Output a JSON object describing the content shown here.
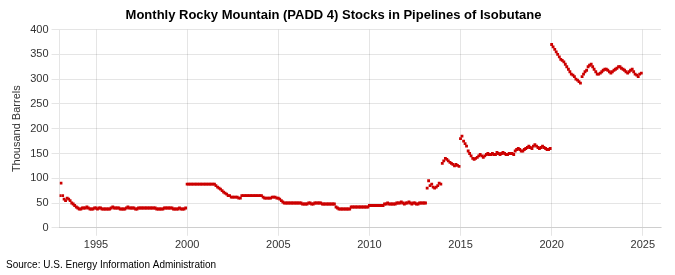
{
  "chart_data": {
    "type": "scatter",
    "title": "Monthly Rocky Mountain (PADD 4) Stocks in Pipelines of Isobutane",
    "ylabel": "Thousand Barrels",
    "annotations": [
      "Source: U.S. Energy Information Administration"
    ],
    "color": "#cc0000",
    "marker": "square",
    "grid": true,
    "xlim": [
      1993.0,
      2026.0
    ],
    "xticks": [
      1995,
      2000,
      2005,
      2010,
      2015,
      2020,
      2025
    ],
    "ylim": [
      0,
      400
    ],
    "yticks": [
      0,
      50,
      100,
      150,
      200,
      250,
      300,
      350,
      400
    ],
    "x": [
      1993.0,
      1993.08,
      1993.17,
      1993.25,
      1993.33,
      1993.42,
      1993.5,
      1993.58,
      1993.67,
      1993.75,
      1993.83,
      1993.92,
      1994.0,
      1994.08,
      1994.17,
      1994.25,
      1994.33,
      1994.42,
      1994.5,
      1994.58,
      1994.67,
      1994.75,
      1994.83,
      1994.92,
      1995.0,
      1995.08,
      1995.17,
      1995.25,
      1995.33,
      1995.42,
      1995.5,
      1995.58,
      1995.67,
      1995.75,
      1995.83,
      1995.92,
      1996.0,
      1996.08,
      1996.17,
      1996.25,
      1996.33,
      1996.42,
      1996.5,
      1996.58,
      1996.67,
      1996.75,
      1996.83,
      1996.92,
      1997.0,
      1997.08,
      1997.17,
      1997.25,
      1997.33,
      1997.42,
      1997.5,
      1997.58,
      1997.67,
      1997.75,
      1997.83,
      1997.92,
      1998.0,
      1998.08,
      1998.17,
      1998.25,
      1998.33,
      1998.42,
      1998.5,
      1998.58,
      1998.67,
      1998.75,
      1998.83,
      1998.92,
      1999.0,
      1999.08,
      1999.17,
      1999.25,
      1999.33,
      1999.42,
      1999.5,
      1999.58,
      1999.67,
      1999.75,
      1999.83,
      1999.92,
      2000.0,
      2000.08,
      2000.17,
      2000.25,
      2000.33,
      2000.42,
      2000.5,
      2000.58,
      2000.67,
      2000.75,
      2000.83,
      2000.92,
      2001.0,
      2001.08,
      2001.17,
      2001.25,
      2001.33,
      2001.42,
      2001.5,
      2001.58,
      2001.67,
      2001.75,
      2001.83,
      2001.92,
      2002.0,
      2002.08,
      2002.17,
      2002.25,
      2002.33,
      2002.42,
      2002.5,
      2002.58,
      2002.67,
      2002.75,
      2002.83,
      2002.92,
      2003.0,
      2003.08,
      2003.17,
      2003.25,
      2003.33,
      2003.42,
      2003.5,
      2003.58,
      2003.67,
      2003.75,
      2003.83,
      2003.92,
      2004.0,
      2004.08,
      2004.17,
      2004.25,
      2004.33,
      2004.42,
      2004.5,
      2004.58,
      2004.67,
      2004.75,
      2004.83,
      2004.92,
      2005.0,
      2005.08,
      2005.17,
      2005.25,
      2005.33,
      2005.42,
      2005.5,
      2005.58,
      2005.67,
      2005.75,
      2005.83,
      2005.92,
      2006.0,
      2006.08,
      2006.17,
      2006.25,
      2006.33,
      2006.42,
      2006.5,
      2006.58,
      2006.67,
      2006.75,
      2006.83,
      2006.92,
      2007.0,
      2007.08,
      2007.17,
      2007.25,
      2007.33,
      2007.42,
      2007.5,
      2007.58,
      2007.67,
      2007.75,
      2007.83,
      2007.92,
      2008.0,
      2008.08,
      2008.17,
      2008.25,
      2008.33,
      2008.42,
      2008.5,
      2008.58,
      2008.67,
      2008.75,
      2008.83,
      2008.92,
      2009.0,
      2009.08,
      2009.17,
      2009.25,
      2009.33,
      2009.42,
      2009.5,
      2009.58,
      2009.67,
      2009.75,
      2009.83,
      2009.92,
      2010.0,
      2010.08,
      2010.17,
      2010.25,
      2010.33,
      2010.42,
      2010.5,
      2010.58,
      2010.67,
      2010.75,
      2010.83,
      2010.92,
      2011.0,
      2011.08,
      2011.17,
      2011.25,
      2011.33,
      2011.42,
      2011.5,
      2011.58,
      2011.67,
      2011.75,
      2011.83,
      2011.92,
      2012.0,
      2012.08,
      2012.17,
      2012.25,
      2012.33,
      2012.42,
      2012.5,
      2012.58,
      2012.67,
      2012.75,
      2012.83,
      2012.92,
      2013.0,
      2013.08,
      2013.17,
      2013.25,
      2013.33,
      2013.42,
      2013.5,
      2013.58,
      2013.67,
      2013.75,
      2013.83,
      2013.92,
      2014.0,
      2014.08,
      2014.17,
      2014.25,
      2014.33,
      2014.42,
      2014.5,
      2014.58,
      2014.67,
      2014.75,
      2014.83,
      2014.92,
      2015.0,
      2015.08,
      2015.17,
      2015.25,
      2015.33,
      2015.42,
      2015.5,
      2015.58,
      2015.67,
      2015.75,
      2015.83,
      2015.92,
      2016.0,
      2016.08,
      2016.17,
      2016.25,
      2016.33,
      2016.42,
      2016.5,
      2016.58,
      2016.67,
      2016.75,
      2016.83,
      2016.92,
      2017.0,
      2017.08,
      2017.17,
      2017.25,
      2017.33,
      2017.42,
      2017.5,
      2017.58,
      2017.67,
      2017.75,
      2017.83,
      2017.92,
      2018.0,
      2018.08,
      2018.17,
      2018.25,
      2018.33,
      2018.42,
      2018.5,
      2018.58,
      2018.67,
      2018.75,
      2018.83,
      2018.92,
      2019.0,
      2019.08,
      2019.17,
      2019.25,
      2019.33,
      2019.42,
      2019.5,
      2019.58,
      2019.67,
      2019.75,
      2019.83,
      2019.92,
      2020.0,
      2020.08,
      2020.17,
      2020.25,
      2020.33,
      2020.42,
      2020.5,
      2020.58,
      2020.67,
      2020.75,
      2020.83,
      2020.92,
      2021.0,
      2021.08,
      2021.17,
      2021.25,
      2021.33,
      2021.42,
      2021.5,
      2021.58,
      2021.67,
      2021.75,
      2021.83,
      2021.92,
      2022.0,
      2022.08,
      2022.17,
      2022.25,
      2022.33,
      2022.42,
      2022.5,
      2022.58,
      2022.67,
      2022.75,
      2022.83,
      2022.92,
      2023.0,
      2023.08,
      2023.17,
      2023.25,
      2023.33,
      2023.42,
      2023.5,
      2023.58,
      2023.67,
      2023.75,
      2023.83,
      2023.92,
      2024.0,
      2024.08,
      2024.17,
      2024.25,
      2024.33,
      2024.42,
      2024.5,
      2024.58,
      2024.67,
      2024.75,
      2024.83,
      2024.92
    ],
    "values": [
      65,
      90,
      65,
      58,
      55,
      60,
      58,
      55,
      50,
      48,
      45,
      42,
      40,
      38,
      38,
      40,
      40,
      40,
      42,
      40,
      38,
      38,
      38,
      40,
      40,
      38,
      40,
      40,
      38,
      38,
      38,
      38,
      38,
      38,
      40,
      42,
      40,
      40,
      40,
      40,
      38,
      38,
      38,
      38,
      40,
      42,
      40,
      40,
      40,
      40,
      38,
      38,
      40,
      40,
      40,
      40,
      40,
      40,
      40,
      40,
      40,
      40,
      40,
      40,
      38,
      38,
      38,
      38,
      38,
      40,
      40,
      40,
      40,
      40,
      40,
      38,
      38,
      38,
      38,
      40,
      38,
      38,
      38,
      40,
      88,
      88,
      88,
      88,
      88,
      88,
      88,
      88,
      88,
      88,
      88,
      88,
      88,
      88,
      88,
      88,
      88,
      88,
      88,
      85,
      82,
      80,
      78,
      75,
      72,
      70,
      68,
      65,
      65,
      62,
      62,
      62,
      62,
      62,
      60,
      60,
      65,
      65,
      65,
      65,
      65,
      65,
      65,
      65,
      65,
      65,
      65,
      65,
      65,
      65,
      62,
      60,
      60,
      60,
      60,
      60,
      62,
      62,
      62,
      60,
      60,
      58,
      55,
      52,
      50,
      50,
      50,
      50,
      50,
      50,
      50,
      50,
      50,
      50,
      50,
      50,
      48,
      48,
      48,
      48,
      50,
      50,
      48,
      48,
      50,
      50,
      50,
      50,
      50,
      48,
      48,
      48,
      48,
      48,
      48,
      48,
      48,
      48,
      42,
      40,
      38,
      38,
      38,
      38,
      38,
      38,
      38,
      38,
      42,
      42,
      42,
      42,
      42,
      42,
      42,
      42,
      42,
      42,
      42,
      42,
      45,
      45,
      45,
      45,
      45,
      45,
      45,
      45,
      45,
      45,
      48,
      48,
      50,
      48,
      48,
      48,
      48,
      48,
      50,
      50,
      50,
      52,
      50,
      48,
      50,
      50,
      52,
      50,
      48,
      50,
      50,
      48,
      48,
      50,
      50,
      50,
      50,
      50,
      80,
      95,
      85,
      88,
      82,
      80,
      82,
      85,
      90,
      88,
      130,
      135,
      140,
      138,
      135,
      132,
      130,
      128,
      125,
      128,
      126,
      124,
      180,
      185,
      175,
      170,
      165,
      155,
      150,
      145,
      140,
      138,
      140,
      142,
      145,
      148,
      145,
      142,
      145,
      148,
      150,
      148,
      148,
      150,
      148,
      148,
      152,
      150,
      148,
      150,
      152,
      150,
      148,
      148,
      150,
      150,
      150,
      148,
      155,
      158,
      160,
      158,
      155,
      155,
      158,
      160,
      162,
      165,
      162,
      160,
      165,
      168,
      165,
      162,
      160,
      162,
      165,
      162,
      160,
      158,
      158,
      160,
      370,
      365,
      360,
      355,
      350,
      345,
      340,
      338,
      335,
      330,
      325,
      320,
      315,
      310,
      308,
      305,
      300,
      298,
      295,
      292,
      305,
      310,
      315,
      318,
      325,
      328,
      330,
      325,
      320,
      315,
      310,
      310,
      312,
      315,
      318,
      320,
      320,
      318,
      315,
      312,
      315,
      318,
      320,
      322,
      325,
      325,
      322,
      320,
      318,
      315,
      312,
      315,
      318,
      320,
      315,
      310,
      308,
      305,
      310,
      312
    ]
  }
}
